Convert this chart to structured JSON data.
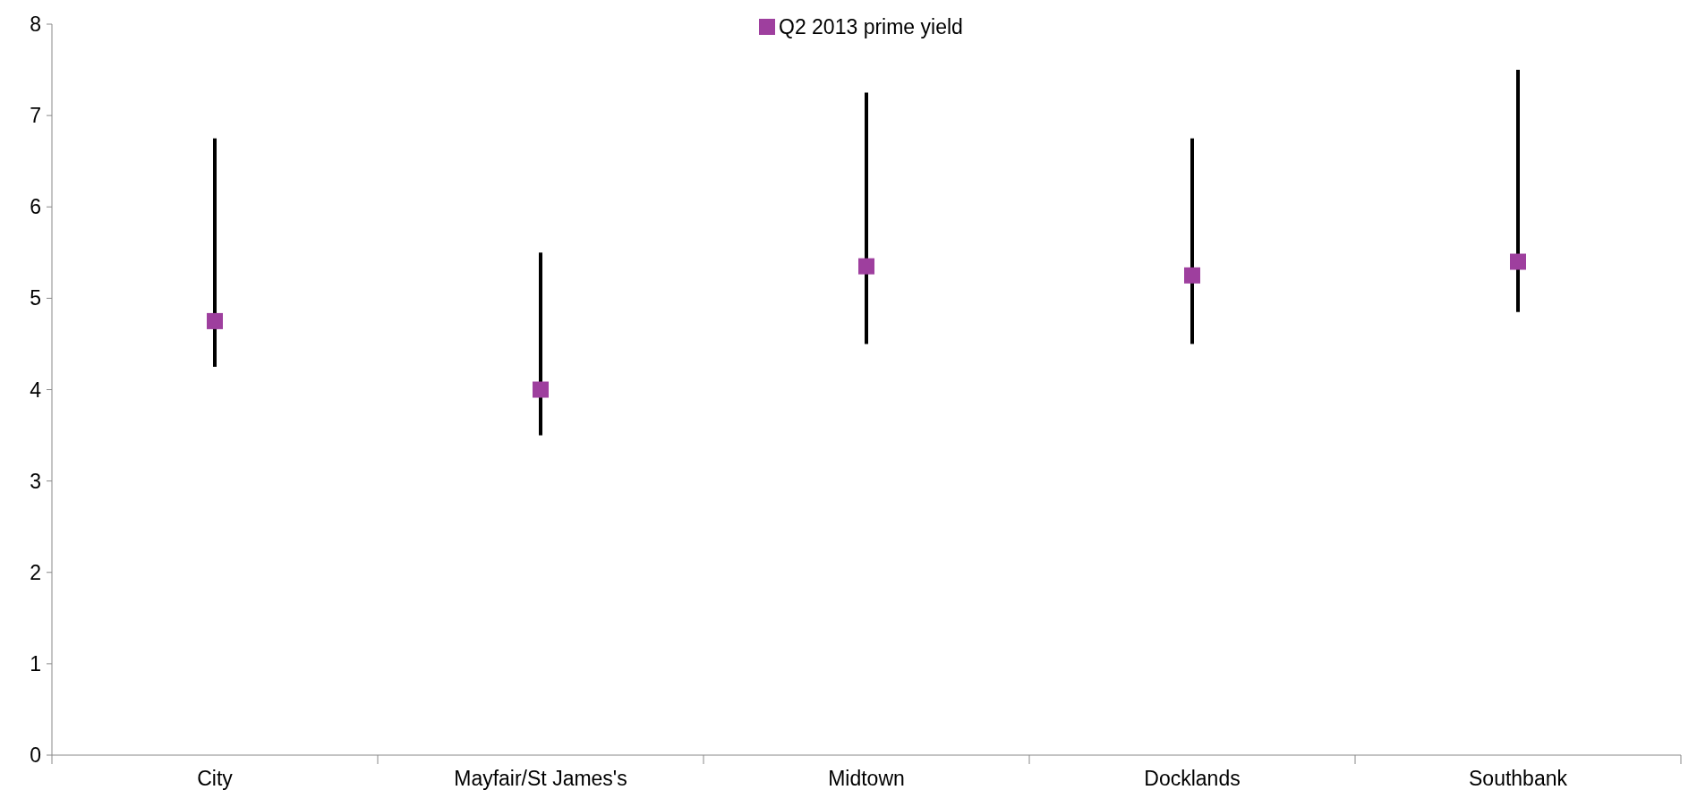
{
  "chart_data": {
    "type": "scatter",
    "categories": [
      "City",
      "Mayfair/St James's",
      "Midtown",
      "Docklands",
      "Southbank"
    ],
    "series": [
      {
        "name": "Q2 2013 prime yield",
        "color": "#9e3f9e",
        "values": [
          4.75,
          4,
          5.35,
          5.25,
          5.4
        ],
        "errors": [
          [
            4.25,
            6.75
          ],
          [
            3.5,
            5.5
          ],
          [
            4.5,
            7.25
          ],
          [
            4.5,
            6.75
          ],
          [
            4.85,
            7.5
          ]
        ]
      }
    ],
    "ylim": [
      0,
      8
    ],
    "yticks": [
      0,
      1,
      2,
      3,
      4,
      5,
      6,
      7,
      8
    ],
    "legend": "top",
    "marker": "square",
    "grid": false
  }
}
